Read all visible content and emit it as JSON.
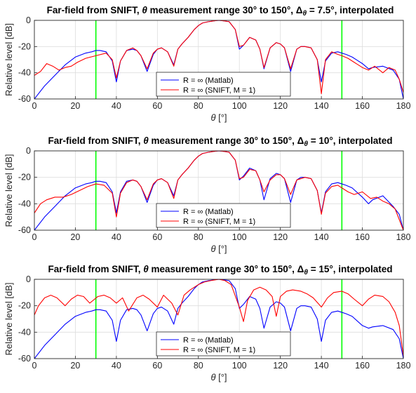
{
  "figure": {
    "panel_count": 3,
    "style": {
      "colors": {
        "matlab_line": "#0000ff",
        "snift_line": "#ff0000",
        "range_marker": "#00ff00",
        "grid": "#dddddd",
        "axes": "#262626"
      }
    }
  },
  "chart_data": [
    {
      "type": "line",
      "title_pre": "Far-field from SNIFT, ",
      "title_theta": "θ",
      "title_mid": " measurement range 30° to 150°, ",
      "title_delta": "Δ",
      "title_sub": "θ",
      "title_post": " = 7.5°, interpolated",
      "xlabel_symbol": "θ",
      "xlabel_unit": " [°]",
      "ylabel": "Relative level [dB]",
      "xlim": [
        0,
        180
      ],
      "ylim": [
        -60,
        0
      ],
      "xticks": [
        0,
        20,
        40,
        60,
        80,
        100,
        120,
        140,
        160,
        180
      ],
      "yticks": [
        0,
        -20,
        -40,
        -60
      ],
      "vlines": [
        30,
        150
      ],
      "grid": true,
      "legend": "bottom-center",
      "series": [
        {
          "name": "R = ∞ (Matlab)",
          "color": "#0000ff",
          "x": [
            0,
            5,
            10,
            15,
            20,
            25,
            28,
            30,
            32,
            35,
            38,
            40,
            42,
            45,
            48,
            50,
            52,
            55,
            58,
            60,
            62,
            65,
            68,
            70,
            72,
            75,
            78,
            80,
            82,
            85,
            88,
            90,
            92,
            95,
            98,
            100,
            102,
            105,
            108,
            110,
            112,
            115,
            118,
            120,
            122,
            125,
            128,
            130,
            132,
            135,
            138,
            140,
            142,
            145,
            148,
            150,
            152,
            155,
            160,
            163,
            165,
            170,
            175,
            178,
            180
          ],
          "y": [
            -60,
            -50,
            -42,
            -34,
            -28,
            -25,
            -24,
            -23,
            -23,
            -24,
            -31,
            -47,
            -31,
            -23,
            -22,
            -23,
            -27,
            -39,
            -26,
            -22,
            -21,
            -24,
            -34,
            -22,
            -18,
            -13,
            -7,
            -4,
            -2,
            -1,
            -0.3,
            0,
            -0.3,
            -1,
            -7,
            -22,
            -19,
            -13,
            -15,
            -22,
            -37,
            -21,
            -17,
            -18,
            -21,
            -39,
            -22,
            -20,
            -20,
            -21,
            -30,
            -47,
            -31,
            -25,
            -24,
            -25,
            -26,
            -28,
            -33,
            -37,
            -36,
            -35,
            -38,
            -45,
            -60
          ]
        },
        {
          "name": "R = ∞ (SNIFT, M = 1)",
          "color": "#ff0000",
          "x": [
            0,
            3,
            6,
            9,
            12,
            15,
            18,
            21,
            25,
            30,
            35,
            38,
            40,
            42,
            45,
            48,
            50,
            52,
            55,
            58,
            60,
            62,
            65,
            68,
            70,
            72,
            75,
            78,
            80,
            82,
            85,
            88,
            90,
            92,
            95,
            98,
            100,
            102,
            105,
            108,
            110,
            112,
            115,
            118,
            120,
            122,
            125,
            128,
            130,
            132,
            135,
            138,
            140,
            142,
            145,
            148,
            150,
            153,
            156,
            160,
            163,
            166,
            170,
            173,
            176,
            178,
            180
          ],
          "y": [
            -42,
            -39,
            -33,
            -35,
            -38,
            -36,
            -35,
            -32,
            -29,
            -27,
            -25,
            -30,
            -44,
            -31,
            -23,
            -21,
            -23,
            -27,
            -37,
            -25,
            -22,
            -21,
            -24,
            -35,
            -22,
            -18,
            -13,
            -7,
            -4,
            -2,
            -1,
            -0.3,
            0,
            -0.3,
            -1,
            -7,
            -20,
            -19,
            -13,
            -15,
            -22,
            -36,
            -21,
            -17,
            -18,
            -21,
            -37,
            -22,
            -20,
            -20,
            -21,
            -30,
            -56,
            -30,
            -24,
            -26,
            -27,
            -29,
            -32,
            -36,
            -38,
            -35,
            -40,
            -36,
            -38,
            -45,
            -55
          ]
        }
      ]
    },
    {
      "type": "line",
      "title_pre": "Far-field from SNIFT, ",
      "title_theta": "θ",
      "title_mid": " measurement range 30° to 150°, ",
      "title_delta": "Δ",
      "title_sub": "θ",
      "title_post": " = 10°, interpolated",
      "xlabel_symbol": "θ",
      "xlabel_unit": " [°]",
      "ylabel": "Relative level [dB]",
      "xlim": [
        0,
        180
      ],
      "ylim": [
        -60,
        0
      ],
      "xticks": [
        0,
        20,
        40,
        60,
        80,
        100,
        120,
        140,
        160,
        180
      ],
      "yticks": [
        0,
        -20,
        -40,
        -60
      ],
      "vlines": [
        30,
        150
      ],
      "grid": true,
      "legend": "bottom-center",
      "series": [
        {
          "name": "R = ∞ (Matlab)",
          "color": "#0000ff",
          "x": [
            0,
            5,
            10,
            15,
            20,
            25,
            28,
            30,
            32,
            35,
            38,
            40,
            42,
            45,
            48,
            50,
            52,
            55,
            58,
            60,
            62,
            65,
            68,
            70,
            72,
            75,
            78,
            80,
            82,
            85,
            88,
            90,
            92,
            95,
            98,
            100,
            102,
            105,
            108,
            110,
            112,
            115,
            118,
            120,
            122,
            125,
            128,
            130,
            132,
            135,
            138,
            140,
            142,
            145,
            148,
            150,
            152,
            155,
            160,
            163,
            165,
            170,
            175,
            178,
            180
          ],
          "y": [
            -60,
            -50,
            -42,
            -34,
            -28,
            -25,
            -24,
            -23,
            -23,
            -24,
            -31,
            -47,
            -31,
            -23,
            -22,
            -23,
            -27,
            -39,
            -26,
            -22,
            -21,
            -24,
            -34,
            -22,
            -18,
            -13,
            -7,
            -4,
            -2,
            -1,
            -0.3,
            0,
            -0.3,
            -1,
            -7,
            -22,
            -19,
            -13,
            -15,
            -22,
            -37,
            -21,
            -17,
            -18,
            -21,
            -39,
            -22,
            -20,
            -20,
            -21,
            -30,
            -47,
            -31,
            -25,
            -24,
            -25,
            -26,
            -28,
            -35,
            -40,
            -37,
            -34,
            -42,
            -48,
            -60
          ]
        },
        {
          "name": "R = ∞ (SNIFT, M = 1)",
          "color": "#ff0000",
          "x": [
            0,
            3,
            6,
            10,
            14,
            18,
            22,
            26,
            30,
            34,
            38,
            40,
            42,
            45,
            48,
            50,
            52,
            55,
            58,
            60,
            62,
            65,
            68,
            70,
            72,
            75,
            78,
            80,
            82,
            85,
            88,
            90,
            92,
            95,
            98,
            100,
            102,
            105,
            108,
            110,
            112,
            115,
            118,
            120,
            122,
            125,
            128,
            130,
            132,
            135,
            138,
            140,
            142,
            145,
            148,
            150,
            153,
            156,
            160,
            164,
            167,
            170,
            173,
            176,
            180
          ],
          "y": [
            -47,
            -40,
            -37,
            -35,
            -35,
            -33,
            -30,
            -27,
            -25,
            -26,
            -32,
            -50,
            -32,
            -24,
            -22,
            -23,
            -27,
            -37,
            -25,
            -22,
            -21,
            -24,
            -36,
            -22,
            -18,
            -13,
            -7,
            -4,
            -2,
            -1,
            -0.3,
            0,
            -0.3,
            -1,
            -7,
            -21,
            -20,
            -14,
            -15,
            -22,
            -31,
            -22,
            -18,
            -18,
            -21,
            -33,
            -22,
            -21,
            -20,
            -21,
            -30,
            -48,
            -32,
            -27,
            -26,
            -28,
            -31,
            -33,
            -31,
            -36,
            -35,
            -38,
            -40,
            -44,
            -60
          ]
        }
      ]
    },
    {
      "type": "line",
      "title_pre": "Far-field from SNIFT, ",
      "title_theta": "θ",
      "title_mid": " measurement range 30° to 150°, ",
      "title_delta": "Δ",
      "title_sub": "θ",
      "title_post": " = 15°, interpolated",
      "xlabel_symbol": "θ",
      "xlabel_unit": " [°]",
      "ylabel": "Relative level [dB]",
      "xlim": [
        0,
        180
      ],
      "ylim": [
        -60,
        0
      ],
      "xticks": [
        0,
        20,
        40,
        60,
        80,
        100,
        120,
        140,
        160,
        180
      ],
      "yticks": [
        0,
        -20,
        -40,
        -60
      ],
      "vlines": [
        30,
        150
      ],
      "grid": true,
      "legend": "bottom-center",
      "series": [
        {
          "name": "R = ∞ (Matlab)",
          "color": "#0000ff",
          "x": [
            0,
            5,
            10,
            15,
            20,
            25,
            28,
            30,
            32,
            35,
            38,
            40,
            42,
            45,
            48,
            50,
            52,
            55,
            58,
            60,
            62,
            65,
            68,
            70,
            72,
            75,
            78,
            80,
            82,
            85,
            88,
            90,
            92,
            95,
            98,
            100,
            102,
            105,
            108,
            110,
            112,
            115,
            118,
            120,
            122,
            125,
            128,
            130,
            132,
            135,
            138,
            140,
            142,
            145,
            148,
            150,
            152,
            155,
            160,
            163,
            165,
            170,
            175,
            178,
            180
          ],
          "y": [
            -60,
            -50,
            -42,
            -34,
            -28,
            -25,
            -24,
            -23,
            -23,
            -24,
            -31,
            -47,
            -31,
            -23,
            -22,
            -23,
            -27,
            -39,
            -26,
            -22,
            -21,
            -24,
            -34,
            -22,
            -18,
            -13,
            -7,
            -4,
            -2,
            -1,
            -0.3,
            0,
            -0.3,
            -1,
            -7,
            -22,
            -19,
            -13,
            -15,
            -22,
            -37,
            -21,
            -17,
            -18,
            -21,
            -39,
            -22,
            -20,
            -20,
            -21,
            -30,
            -47,
            -31,
            -25,
            -24,
            -25,
            -26,
            -28,
            -35,
            -37,
            -36,
            -35,
            -38,
            -45,
            -60
          ]
        },
        {
          "name": "R = ∞ (SNIFT, M = 1)",
          "color": "#ff0000",
          "x": [
            0,
            2,
            5,
            8,
            11,
            15,
            18,
            21,
            24,
            27,
            31,
            34,
            37,
            40,
            43,
            46,
            50,
            53,
            56,
            60,
            63,
            67,
            70,
            73,
            76,
            80,
            83,
            86,
            90,
            93,
            96,
            100,
            102,
            104,
            107,
            110,
            113,
            116,
            118,
            120,
            123,
            126,
            130,
            133,
            136,
            140,
            143,
            146,
            150,
            153,
            156,
            160,
            163,
            166,
            170,
            173,
            176,
            178,
            180
          ],
          "y": [
            -27,
            -20,
            -14,
            -12,
            -14,
            -20,
            -15,
            -12,
            -13,
            -18,
            -13,
            -12,
            -14,
            -18,
            -14,
            -24,
            -14,
            -12,
            -15,
            -21,
            -12,
            -18,
            -27,
            -12,
            -8,
            -4,
            -2,
            -1,
            0,
            -1,
            -4,
            -21,
            -32,
            -16,
            -8,
            -6,
            -8,
            -13,
            -28,
            -13,
            -9,
            -8,
            -9,
            -11,
            -14,
            -21,
            -14,
            -10,
            -9,
            -11,
            -15,
            -20,
            -15,
            -12,
            -13,
            -17,
            -25,
            -35,
            -58
          ]
        }
      ]
    }
  ]
}
